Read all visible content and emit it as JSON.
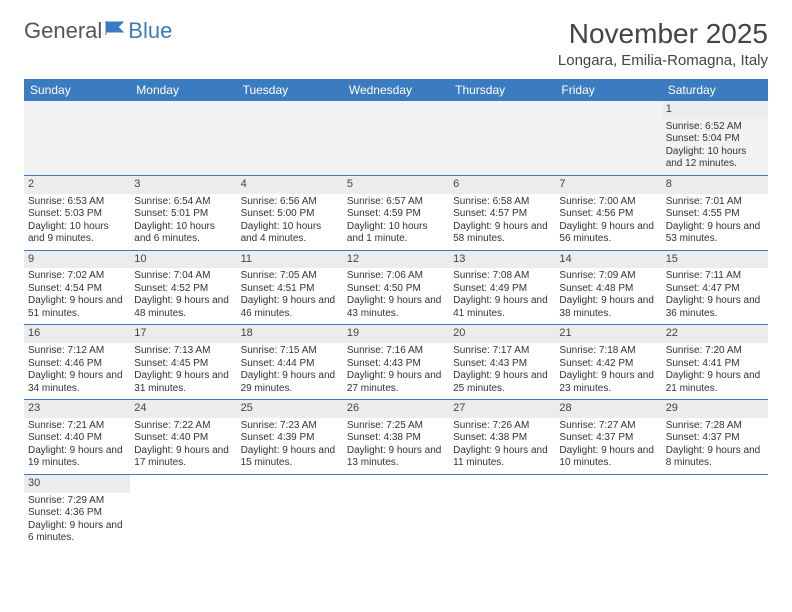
{
  "logo": {
    "part1": "General",
    "part2": "Blue"
  },
  "title": "November 2025",
  "subtitle": "Longara, Emilia-Romagna, Italy",
  "colors": {
    "header_bg": "#3a7cbf",
    "daynum_bg": "#ececec",
    "page_bg": "#ffffff"
  },
  "day_headers": [
    "Sunday",
    "Monday",
    "Tuesday",
    "Wednesday",
    "Thursday",
    "Friday",
    "Saturday"
  ],
  "weeks": [
    [
      null,
      null,
      null,
      null,
      null,
      null,
      {
        "n": "1",
        "sr": "Sunrise: 6:52 AM",
        "ss": "Sunset: 5:04 PM",
        "dl": "Daylight: 10 hours and 12 minutes."
      }
    ],
    [
      {
        "n": "2",
        "sr": "Sunrise: 6:53 AM",
        "ss": "Sunset: 5:03 PM",
        "dl": "Daylight: 10 hours and 9 minutes."
      },
      {
        "n": "3",
        "sr": "Sunrise: 6:54 AM",
        "ss": "Sunset: 5:01 PM",
        "dl": "Daylight: 10 hours and 6 minutes."
      },
      {
        "n": "4",
        "sr": "Sunrise: 6:56 AM",
        "ss": "Sunset: 5:00 PM",
        "dl": "Daylight: 10 hours and 4 minutes."
      },
      {
        "n": "5",
        "sr": "Sunrise: 6:57 AM",
        "ss": "Sunset: 4:59 PM",
        "dl": "Daylight: 10 hours and 1 minute."
      },
      {
        "n": "6",
        "sr": "Sunrise: 6:58 AM",
        "ss": "Sunset: 4:57 PM",
        "dl": "Daylight: 9 hours and 58 minutes."
      },
      {
        "n": "7",
        "sr": "Sunrise: 7:00 AM",
        "ss": "Sunset: 4:56 PM",
        "dl": "Daylight: 9 hours and 56 minutes."
      },
      {
        "n": "8",
        "sr": "Sunrise: 7:01 AM",
        "ss": "Sunset: 4:55 PM",
        "dl": "Daylight: 9 hours and 53 minutes."
      }
    ],
    [
      {
        "n": "9",
        "sr": "Sunrise: 7:02 AM",
        "ss": "Sunset: 4:54 PM",
        "dl": "Daylight: 9 hours and 51 minutes."
      },
      {
        "n": "10",
        "sr": "Sunrise: 7:04 AM",
        "ss": "Sunset: 4:52 PM",
        "dl": "Daylight: 9 hours and 48 minutes."
      },
      {
        "n": "11",
        "sr": "Sunrise: 7:05 AM",
        "ss": "Sunset: 4:51 PM",
        "dl": "Daylight: 9 hours and 46 minutes."
      },
      {
        "n": "12",
        "sr": "Sunrise: 7:06 AM",
        "ss": "Sunset: 4:50 PM",
        "dl": "Daylight: 9 hours and 43 minutes."
      },
      {
        "n": "13",
        "sr": "Sunrise: 7:08 AM",
        "ss": "Sunset: 4:49 PM",
        "dl": "Daylight: 9 hours and 41 minutes."
      },
      {
        "n": "14",
        "sr": "Sunrise: 7:09 AM",
        "ss": "Sunset: 4:48 PM",
        "dl": "Daylight: 9 hours and 38 minutes."
      },
      {
        "n": "15",
        "sr": "Sunrise: 7:11 AM",
        "ss": "Sunset: 4:47 PM",
        "dl": "Daylight: 9 hours and 36 minutes."
      }
    ],
    [
      {
        "n": "16",
        "sr": "Sunrise: 7:12 AM",
        "ss": "Sunset: 4:46 PM",
        "dl": "Daylight: 9 hours and 34 minutes."
      },
      {
        "n": "17",
        "sr": "Sunrise: 7:13 AM",
        "ss": "Sunset: 4:45 PM",
        "dl": "Daylight: 9 hours and 31 minutes."
      },
      {
        "n": "18",
        "sr": "Sunrise: 7:15 AM",
        "ss": "Sunset: 4:44 PM",
        "dl": "Daylight: 9 hours and 29 minutes."
      },
      {
        "n": "19",
        "sr": "Sunrise: 7:16 AM",
        "ss": "Sunset: 4:43 PM",
        "dl": "Daylight: 9 hours and 27 minutes."
      },
      {
        "n": "20",
        "sr": "Sunrise: 7:17 AM",
        "ss": "Sunset: 4:43 PM",
        "dl": "Daylight: 9 hours and 25 minutes."
      },
      {
        "n": "21",
        "sr": "Sunrise: 7:18 AM",
        "ss": "Sunset: 4:42 PM",
        "dl": "Daylight: 9 hours and 23 minutes."
      },
      {
        "n": "22",
        "sr": "Sunrise: 7:20 AM",
        "ss": "Sunset: 4:41 PM",
        "dl": "Daylight: 9 hours and 21 minutes."
      }
    ],
    [
      {
        "n": "23",
        "sr": "Sunrise: 7:21 AM",
        "ss": "Sunset: 4:40 PM",
        "dl": "Daylight: 9 hours and 19 minutes."
      },
      {
        "n": "24",
        "sr": "Sunrise: 7:22 AM",
        "ss": "Sunset: 4:40 PM",
        "dl": "Daylight: 9 hours and 17 minutes."
      },
      {
        "n": "25",
        "sr": "Sunrise: 7:23 AM",
        "ss": "Sunset: 4:39 PM",
        "dl": "Daylight: 9 hours and 15 minutes."
      },
      {
        "n": "26",
        "sr": "Sunrise: 7:25 AM",
        "ss": "Sunset: 4:38 PM",
        "dl": "Daylight: 9 hours and 13 minutes."
      },
      {
        "n": "27",
        "sr": "Sunrise: 7:26 AM",
        "ss": "Sunset: 4:38 PM",
        "dl": "Daylight: 9 hours and 11 minutes."
      },
      {
        "n": "28",
        "sr": "Sunrise: 7:27 AM",
        "ss": "Sunset: 4:37 PM",
        "dl": "Daylight: 9 hours and 10 minutes."
      },
      {
        "n": "29",
        "sr": "Sunrise: 7:28 AM",
        "ss": "Sunset: 4:37 PM",
        "dl": "Daylight: 9 hours and 8 minutes."
      }
    ],
    [
      {
        "n": "30",
        "sr": "Sunrise: 7:29 AM",
        "ss": "Sunset: 4:36 PM",
        "dl": "Daylight: 9 hours and 6 minutes."
      },
      null,
      null,
      null,
      null,
      null,
      null
    ]
  ]
}
